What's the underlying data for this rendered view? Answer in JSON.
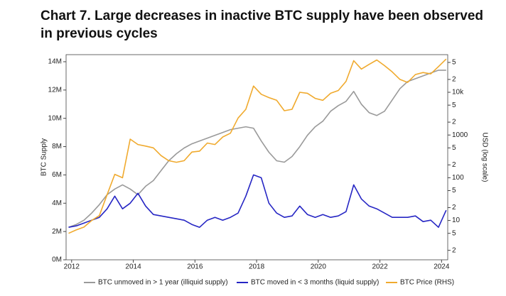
{
  "chart_data": {
    "type": "line",
    "title": "Chart 7. Large decreases in inactive BTC supply have been observed in previous cycles",
    "y_label": "BTC Supply",
    "y2_label": "USD (log scale)",
    "xlim": [
      2011.82,
      2024.2
    ],
    "xticks": [
      2012,
      2014,
      2016,
      2018,
      2020,
      2022,
      2024
    ],
    "ylim": [
      0,
      14500000
    ],
    "yticks": [
      {
        "value": 0,
        "label": "0M"
      },
      {
        "value": 2000000,
        "label": "2M"
      },
      {
        "value": 4000000,
        "label": "4M"
      },
      {
        "value": 6000000,
        "label": "6M"
      },
      {
        "value": 8000000,
        "label": "8M"
      },
      {
        "value": 10000000,
        "label": "10M"
      },
      {
        "value": 12000000,
        "label": "12M"
      },
      {
        "value": 14000000,
        "label": "14M"
      }
    ],
    "y2lim": [
      1.2,
      76000
    ],
    "y2log": true,
    "y2ticks": [
      2,
      5,
      10,
      {
        "value": 20,
        "label": "2"
      },
      {
        "value": 50,
        "label": "5"
      },
      100,
      {
        "value": 200,
        "label": "2"
      },
      {
        "value": 500,
        "label": "5"
      },
      1000,
      {
        "value": 2000,
        "label": "2"
      },
      {
        "value": 5000,
        "label": "5"
      },
      {
        "value": 10000,
        "label": "10k"
      },
      {
        "value": 20000,
        "label": "2"
      },
      {
        "value": 50000,
        "label": "5"
      }
    ],
    "grid": false,
    "legend": "bottom",
    "x": [
      2011.9,
      2012.15,
      2012.4,
      2012.65,
      2012.9,
      2013.15,
      2013.4,
      2013.65,
      2013.9,
      2014.15,
      2014.4,
      2014.65,
      2014.9,
      2015.15,
      2015.4,
      2015.65,
      2015.9,
      2016.15,
      2016.4,
      2016.65,
      2016.9,
      2017.15,
      2017.4,
      2017.65,
      2017.9,
      2018.15,
      2018.4,
      2018.65,
      2018.9,
      2019.15,
      2019.4,
      2019.65,
      2019.9,
      2020.15,
      2020.4,
      2020.65,
      2020.9,
      2021.15,
      2021.4,
      2021.65,
      2021.9,
      2022.15,
      2022.4,
      2022.65,
      2022.9,
      2023.15,
      2023.4,
      2023.65,
      2023.9,
      2024.15
    ],
    "series": [
      {
        "name": "BTC unmoved in > 1 year (illiquid supply)",
        "color": "#9a9a9a",
        "values": [
          2300000,
          2500000,
          2800000,
          3300000,
          3900000,
          4600000,
          5000000,
          5300000,
          5000000,
          4600000,
          5200000,
          5600000,
          6300000,
          7000000,
          7500000,
          7900000,
          8200000,
          8400000,
          8600000,
          8800000,
          9000000,
          9200000,
          9300000,
          9400000,
          9300000,
          8400000,
          7600000,
          7000000,
          6900000,
          7300000,
          8000000,
          8800000,
          9400000,
          9800000,
          10500000,
          10900000,
          11200000,
          11900000,
          11000000,
          10400000,
          10200000,
          10500000,
          11300000,
          12100000,
          12600000,
          12800000,
          13000000,
          13200000,
          13400000,
          13400000
        ]
      },
      {
        "name": "BTC moved in < 3 months (liquid supply)",
        "color": "#2626c4",
        "values": [
          2300000,
          2400000,
          2600000,
          2800000,
          3000000,
          3600000,
          4500000,
          3600000,
          4000000,
          4700000,
          3800000,
          3200000,
          3100000,
          3000000,
          2900000,
          2800000,
          2500000,
          2300000,
          2800000,
          3000000,
          2800000,
          3000000,
          3300000,
          4500000,
          6000000,
          5800000,
          4000000,
          3300000,
          3000000,
          3100000,
          3800000,
          3200000,
          3000000,
          3200000,
          3000000,
          3100000,
          3400000,
          5300000,
          4300000,
          3800000,
          3600000,
          3300000,
          3000000,
          3000000,
          3000000,
          3100000,
          2700000,
          2800000,
          2300000,
          3500000
        ]
      },
      {
        "name": "BTC Price (RHS)",
        "color": "#f0aa2e",
        "axis": "y2",
        "values": [
          5,
          6,
          7,
          10,
          13,
          40,
          120,
          100,
          800,
          600,
          550,
          500,
          330,
          250,
          230,
          250,
          400,
          420,
          650,
          600,
          900,
          1100,
          2500,
          4000,
          14000,
          9000,
          7500,
          6500,
          3700,
          4000,
          10000,
          9500,
          7200,
          6500,
          9500,
          11000,
          18000,
          55000,
          35000,
          45000,
          57000,
          42000,
          30000,
          20000,
          17000,
          26000,
          29000,
          27000,
          40000,
          60000
        ]
      }
    ]
  }
}
